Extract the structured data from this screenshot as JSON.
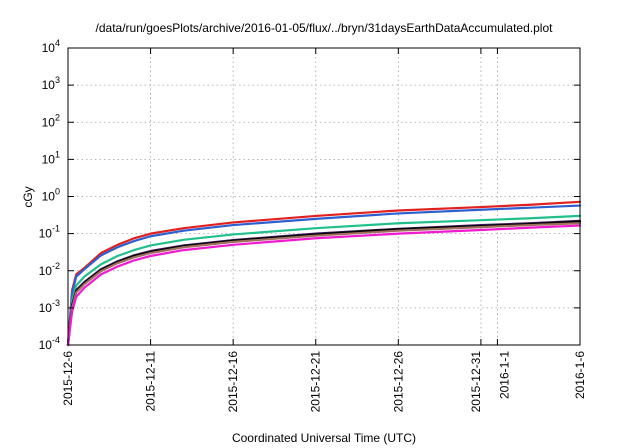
{
  "chart_data": {
    "type": "line",
    "title": "/data/run/goesPlots/archive/2016-01-05/flux/../bryn/31daysEarthDataAccumulated.plot",
    "xlabel": "Coordinated Universal Time (UTC)",
    "ylabel": "cGy",
    "y_scale": "log",
    "ylim": [
      0.0001,
      10000
    ],
    "xlim": [
      "2015-12-06",
      "2016-01-06"
    ],
    "y_ticks": [
      {
        "value": 0.0001,
        "base": "10",
        "exp": "-4"
      },
      {
        "value": 0.001,
        "base": "10",
        "exp": "-3"
      },
      {
        "value": 0.01,
        "base": "10",
        "exp": "-2"
      },
      {
        "value": 0.1,
        "base": "10",
        "exp": "-1"
      },
      {
        "value": 1,
        "base": "10",
        "exp": "0"
      },
      {
        "value": 10,
        "base": "10",
        "exp": "1"
      },
      {
        "value": 100,
        "base": "10",
        "exp": "2"
      },
      {
        "value": 1000,
        "base": "10",
        "exp": "3"
      },
      {
        "value": 10000,
        "base": "10",
        "exp": "4"
      }
    ],
    "x_ticks": [
      {
        "date": "2015-12-06",
        "label": "2015-12-6"
      },
      {
        "date": "2015-12-11",
        "label": "2015-12-11"
      },
      {
        "date": "2015-12-16",
        "label": "2015-12-16"
      },
      {
        "date": "2015-12-21",
        "label": "2015-12-21"
      },
      {
        "date": "2015-12-26",
        "label": "2015-12-26"
      },
      {
        "date": "2015-12-31",
        "label": "2015-12-31"
      },
      {
        "date": "2016-01-01",
        "label": "2016-1-1"
      },
      {
        "date": "2016-01-06",
        "label": "2016-1-6"
      }
    ],
    "grid": true,
    "legend": "none",
    "series": [
      {
        "color": "#e0211f",
        "points": [
          [
            "2015-12-06T00:00",
            0.0001
          ],
          [
            "2015-12-06T06:00",
            0.003
          ],
          [
            "2015-12-06T12:00",
            0.008
          ],
          [
            "2015-12-07T00:00",
            0.012
          ],
          [
            "2015-12-08T00:00",
            0.03
          ],
          [
            "2015-12-09T00:00",
            0.05
          ],
          [
            "2015-12-10T00:00",
            0.075
          ],
          [
            "2015-12-11T00:00",
            0.1
          ],
          [
            "2015-12-13T00:00",
            0.14
          ],
          [
            "2015-12-16T00:00",
            0.2
          ],
          [
            "2015-12-21T00:00",
            0.3
          ],
          [
            "2015-12-26T00:00",
            0.42
          ],
          [
            "2015-12-31T00:00",
            0.52
          ],
          [
            "2016-01-03T00:00",
            0.6
          ],
          [
            "2016-01-06T00:00",
            0.72
          ]
        ]
      },
      {
        "color": "#2e5fd0",
        "points": [
          [
            "2015-12-06T00:00",
            0.0001
          ],
          [
            "2015-12-06T06:00",
            0.0025
          ],
          [
            "2015-12-06T12:00",
            0.007
          ],
          [
            "2015-12-07T00:00",
            0.011
          ],
          [
            "2015-12-08T00:00",
            0.026
          ],
          [
            "2015-12-09T00:00",
            0.043
          ],
          [
            "2015-12-10T00:00",
            0.063
          ],
          [
            "2015-12-11T00:00",
            0.085
          ],
          [
            "2015-12-13T00:00",
            0.12
          ],
          [
            "2015-12-16T00:00",
            0.17
          ],
          [
            "2015-12-21T00:00",
            0.25
          ],
          [
            "2015-12-26T00:00",
            0.35
          ],
          [
            "2015-12-31T00:00",
            0.44
          ],
          [
            "2016-01-03T00:00",
            0.5
          ],
          [
            "2016-01-06T00:00",
            0.57
          ]
        ]
      },
      {
        "color": "#20c08a",
        "points": [
          [
            "2015-12-06T00:00",
            0.0001
          ],
          [
            "2015-12-06T06:00",
            0.0015
          ],
          [
            "2015-12-06T12:00",
            0.004
          ],
          [
            "2015-12-07T00:00",
            0.007
          ],
          [
            "2015-12-08T00:00",
            0.015
          ],
          [
            "2015-12-09T00:00",
            0.025
          ],
          [
            "2015-12-10T00:00",
            0.036
          ],
          [
            "2015-12-11T00:00",
            0.048
          ],
          [
            "2015-12-13T00:00",
            0.068
          ],
          [
            "2015-12-16T00:00",
            0.095
          ],
          [
            "2015-12-21T00:00",
            0.14
          ],
          [
            "2015-12-26T00:00",
            0.19
          ],
          [
            "2015-12-31T00:00",
            0.23
          ],
          [
            "2016-01-03T00:00",
            0.26
          ],
          [
            "2016-01-06T00:00",
            0.3
          ]
        ]
      },
      {
        "color": "#3c1a5e",
        "points": [
          [
            "2015-12-06T00:00",
            0.0001
          ],
          [
            "2015-12-06T06:00",
            0.0012
          ],
          [
            "2015-12-06T12:00",
            0.003
          ],
          [
            "2015-12-07T00:00",
            0.005
          ],
          [
            "2015-12-08T00:00",
            0.011
          ],
          [
            "2015-12-09T00:00",
            0.018
          ],
          [
            "2015-12-10T00:00",
            0.026
          ],
          [
            "2015-12-11T00:00",
            0.034
          ],
          [
            "2015-12-13T00:00",
            0.048
          ],
          [
            "2015-12-16T00:00",
            0.067
          ],
          [
            "2015-12-21T00:00",
            0.1
          ],
          [
            "2015-12-26T00:00",
            0.135
          ],
          [
            "2015-12-31T00:00",
            0.17
          ],
          [
            "2016-01-03T00:00",
            0.19
          ],
          [
            "2016-01-06T00:00",
            0.22
          ]
        ]
      },
      {
        "color": "#000000",
        "points": [
          [
            "2015-12-06T00:00",
            0.0001
          ],
          [
            "2015-12-06T06:00",
            0.0011
          ],
          [
            "2015-12-06T12:00",
            0.0028
          ],
          [
            "2015-12-07T00:00",
            0.0047
          ],
          [
            "2015-12-08T00:00",
            0.0105
          ],
          [
            "2015-12-09T00:00",
            0.017
          ],
          [
            "2015-12-10T00:00",
            0.025
          ],
          [
            "2015-12-11T00:00",
            0.032
          ],
          [
            "2015-12-13T00:00",
            0.046
          ],
          [
            "2015-12-16T00:00",
            0.064
          ],
          [
            "2015-12-21T00:00",
            0.095
          ],
          [
            "2015-12-26T00:00",
            0.13
          ],
          [
            "2015-12-31T00:00",
            0.16
          ],
          [
            "2016-01-03T00:00",
            0.18
          ],
          [
            "2016-01-06T00:00",
            0.21
          ]
        ]
      },
      {
        "color": "#a07060",
        "points": [
          [
            "2015-12-06T00:00",
            0.0001
          ],
          [
            "2015-12-06T06:00",
            0.001
          ],
          [
            "2015-12-06T12:00",
            0.0026
          ],
          [
            "2015-12-07T00:00",
            0.0044
          ],
          [
            "2015-12-08T00:00",
            0.0098
          ],
          [
            "2015-12-09T00:00",
            0.016
          ],
          [
            "2015-12-10T00:00",
            0.023
          ],
          [
            "2015-12-11T00:00",
            0.03
          ],
          [
            "2015-12-13T00:00",
            0.043
          ],
          [
            "2015-12-16T00:00",
            0.06
          ],
          [
            "2015-12-21T00:00",
            0.088
          ],
          [
            "2015-12-26T00:00",
            0.12
          ],
          [
            "2015-12-31T00:00",
            0.15
          ],
          [
            "2016-01-03T00:00",
            0.17
          ],
          [
            "2016-01-06T00:00",
            0.19
          ]
        ]
      },
      {
        "color": "#f01ad0",
        "points": [
          [
            "2015-12-06T00:00",
            0.0001
          ],
          [
            "2015-12-06T06:00",
            0.0008
          ],
          [
            "2015-12-06T12:00",
            0.002
          ],
          [
            "2015-12-07T00:00",
            0.0035
          ],
          [
            "2015-12-08T00:00",
            0.008
          ],
          [
            "2015-12-09T00:00",
            0.013
          ],
          [
            "2015-12-10T00:00",
            0.019
          ],
          [
            "2015-12-11T00:00",
            0.025
          ],
          [
            "2015-12-13T00:00",
            0.036
          ],
          [
            "2015-12-16T00:00",
            0.05
          ],
          [
            "2015-12-21T00:00",
            0.075
          ],
          [
            "2015-12-26T00:00",
            0.1
          ],
          [
            "2015-12-31T00:00",
            0.125
          ],
          [
            "2016-01-03T00:00",
            0.145
          ],
          [
            "2016-01-06T00:00",
            0.165
          ]
        ]
      }
    ]
  }
}
